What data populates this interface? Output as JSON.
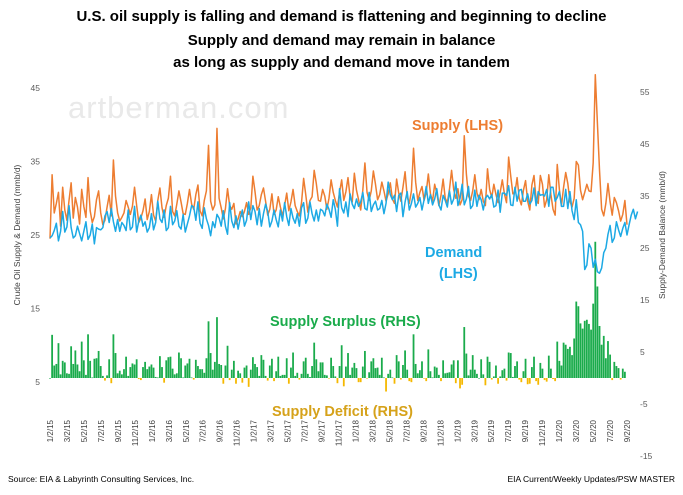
{
  "chart_data": {
    "type": "line",
    "title": [
      "U.S. oil supply is falling and demand is flattening and beginning to decline",
      "Supply and demand may remain in balance",
      "as long as supply and demand move in tandem"
    ],
    "watermark": "artberman.com",
    "ylabel_left": "Crude  Oil Supply & Demand (mmb/d)",
    "ylabel_right": "Supply-Demand Balance (mmb/d)",
    "y_left": {
      "ticks": [
        "5",
        "15",
        "25",
        "35",
        "45"
      ],
      "ylim": [
        5,
        45
      ]
    },
    "y_right": {
      "ticks": [
        "-15",
        "-5",
        "5",
        "15",
        "25",
        "35",
        "45",
        "55"
      ],
      "ylim": [
        -15,
        55
      ]
    },
    "x_ticks": [
      "1/2/15",
      "3/2/15",
      "5/2/15",
      "7/2/15",
      "9/2/15",
      "11/2/15",
      "1/2/16",
      "3/2/16",
      "5/2/16",
      "7/2/16",
      "9/2/16",
      "11/2/16",
      "1/2/17",
      "3/2/17",
      "5/2/17",
      "7/2/17",
      "9/2/17",
      "11/2/17",
      "1/2/18",
      "3/2/18",
      "5/2/18",
      "7/2/18",
      "9/2/18",
      "11/2/18",
      "1/2/19",
      "3/2/19",
      "5/2/19",
      "7/2/19",
      "9/2/19",
      "11/2/19",
      "1/2/20",
      "3/2/20",
      "5/2/20",
      "7/2/20",
      "9/2/20"
    ],
    "annotations": [
      {
        "text": "Supply (LHS)",
        "color": "#ed7d31"
      },
      {
        "text": "Demand",
        "color": "#1ca9e4"
      },
      {
        "text": "(LHS)",
        "color": "#1ca9e4"
      },
      {
        "text": "Supply Surplus (RHS)",
        "color": "#1aab4b"
      },
      {
        "text": "Supply Deficit (RHS)",
        "color": "#d6a21a"
      }
    ],
    "colors": {
      "supply": "#ed7d31",
      "demand": "#1ca9e4",
      "surplus": "#1aab4b",
      "deficit": "#f5b800"
    },
    "series": [
      {
        "name": "Supply (LHS)",
        "axis": "left",
        "type": "line",
        "values": [
          24.5,
          33.2,
          28.0,
          29.3,
          30.8,
          26.2,
          31.5,
          28.4,
          27.0,
          29.7,
          32.1,
          27.3,
          30.1,
          28.8,
          26.5,
          31.2,
          28.9,
          27.4,
          32.8,
          28.3,
          26.7,
          27.5,
          29.8,
          31.0,
          28.0,
          26.4,
          27.0,
          28.8,
          30.4,
          27.6,
          35.2,
          30.3,
          28.0,
          26.9,
          27.4,
          28.0,
          29.7,
          28.8,
          27.8,
          28.9,
          31.5,
          29.0,
          26.7,
          27.3,
          28.3,
          29.9,
          27.1,
          28.2,
          30.5,
          27.7,
          26.9,
          29.7,
          31.4,
          28.7,
          27.4,
          29.0,
          30.0,
          33.0,
          28.2,
          27.6,
          29.2,
          31.0,
          29.5,
          27.9,
          27.8,
          29.3,
          31.2,
          29.2,
          28.5,
          30.5,
          31.8,
          28.3,
          27.6,
          29.7,
          31.0,
          37.2,
          29.6,
          28.4,
          29.1,
          39.5,
          30.0,
          28.7,
          27.2,
          28.6,
          31.3,
          29.0,
          28.5,
          29.3,
          26.5,
          27.2,
          28.2,
          27.5,
          28.2,
          29.4,
          27.8,
          28.7,
          33.0,
          30.9,
          28.4,
          29.0,
          30.5,
          31.4,
          29.6,
          27.7,
          28.5,
          30.6,
          27.8,
          28.4,
          30.2,
          28.8,
          27.6,
          29.0,
          30.7,
          28.3,
          29.5,
          31.2,
          29.0,
          28.2,
          27.6,
          29.4,
          32.7,
          30.5,
          28.1,
          29.7,
          30.2,
          33.8,
          32.0,
          29.7,
          29.6,
          31.2,
          30.3,
          28.5,
          30.0,
          32.5,
          30.8,
          29.7,
          28.8,
          30.8,
          32.5,
          29.7,
          30.9,
          32.8,
          30.1,
          29.5,
          33.4,
          31.1,
          29.8,
          28.4,
          31.1,
          34.8,
          30.8,
          29.7,
          31.0,
          33.7,
          31.9,
          29.8,
          30.5,
          32.2,
          31.0,
          29.6,
          30.6,
          32.1,
          29.9,
          29.3,
          32.6,
          30.7,
          29.6,
          31.5,
          33.6,
          30.2,
          29.3,
          31.0,
          36.8,
          32.2,
          29.7,
          30.8,
          31.6,
          29.7,
          30.8,
          33.3,
          30.6,
          29.6,
          31.9,
          30.7,
          29.0,
          30.4,
          32.6,
          30.0,
          29.4,
          31.2,
          33.8,
          31.2,
          30.0,
          31.3,
          29.1,
          29.8,
          38.5,
          33.3,
          30.3,
          29.7,
          31.0,
          33.2,
          30.7,
          29.8,
          31.2,
          29.6,
          29.0,
          34.0,
          31.2,
          30.1,
          31.9,
          30.5,
          29.4,
          30.8,
          32.5,
          30.6,
          29.4,
          35.6,
          33.0,
          30.6,
          30.8,
          32.8,
          30.0,
          29.1,
          31.1,
          32.4,
          29.6,
          28.4,
          31.8,
          33.1,
          29.8,
          29.3,
          33.1,
          31.9,
          28.8,
          29.8,
          33.2,
          30.5,
          28.5,
          27.7,
          34.6,
          31.2,
          29.0,
          31.5,
          33.5,
          32.0,
          29.6,
          28.8,
          30.0,
          35.0,
          34.5,
          31.1,
          29.8,
          30.8,
          31.9,
          31.0,
          30.9,
          34.8,
          46.8,
          40.2,
          33.8,
          28.5,
          27.6,
          29.3,
          32.0,
          29.5,
          27.7,
          30.1,
          29.4,
          28.3,
          26.9,
          27.8,
          29.7,
          26.4
        ]
      },
      {
        "name": "Demand (LHS)",
        "axis": "left",
        "type": "line",
        "values": [
          24.6,
          24.9,
          25.6,
          26.6,
          24.2,
          25.5,
          28.2,
          25.4,
          26.1,
          29.0,
          26.0,
          24.6,
          24.9,
          26.2,
          25.2,
          24.2,
          25.5,
          26.8,
          24.4,
          25.0,
          26.5,
          23.8,
          26.0,
          25.8,
          25.7,
          26.0,
          27.6,
          28.2,
          26.7,
          28.6,
          26.8,
          25.5,
          27.1,
          25.5,
          26.7,
          26.3,
          25.6,
          28.4,
          25.7,
          26.1,
          28.9,
          25.4,
          26.9,
          27.7,
          26.2,
          26.8,
          25.4,
          26.0,
          27.9,
          25.7,
          26.7,
          29.6,
          27.2,
          26.7,
          28.4,
          25.6,
          26.0,
          28.9,
          26.4,
          26.9,
          28.3,
          26.2,
          25.8,
          27.8,
          25.4,
          26.5,
          27.6,
          29.0,
          28.8,
          27.0,
          29.5,
          26.6,
          25.9,
          28.7,
          27.2,
          26.3,
          24.9,
          26.8,
          26.0,
          27.8,
          27.3,
          26.2,
          28.3,
          26.2,
          25.1,
          29.4,
          26.9,
          26.0,
          27.6,
          25.8,
          27.3,
          28.4,
          26.2,
          27.0,
          29.5,
          27.1,
          29.0,
          28.2,
          26.4,
          28.6,
          26.2,
          27.9,
          29.2,
          28.2,
          26.1,
          26.9,
          28.4,
          27.1,
          26.1,
          28.4,
          26.9,
          29.4,
          27.5,
          26.3,
          28.6,
          27.3,
          26.6,
          27.9,
          26.2,
          28.7,
          29.4,
          26.6,
          27.3,
          29.5,
          27.9,
          26.9,
          28.4,
          26.9,
          28.5,
          28.3,
          27.6,
          29.2,
          28.5,
          27.4,
          29.8,
          28.5,
          26.2,
          31.3,
          28.7,
          28.0,
          29.5,
          27.5,
          30.6,
          29.2,
          28.6,
          29.9,
          28.9,
          29.5,
          30.8,
          28.6,
          28.4,
          30.8,
          28.2,
          29.1,
          29.6,
          28.4,
          28.6,
          29.7,
          27.9,
          29.3,
          32.2,
          30.5,
          29.8,
          30.4,
          28.2,
          30.4,
          30.7,
          27.5,
          29.5,
          30.9,
          28.4,
          29.3,
          30.6,
          28.8,
          29.3,
          30.1,
          28.4,
          29.8,
          31.6,
          29.3,
          30.5,
          29.1,
          29.9,
          31.3,
          29.1,
          28.4,
          30.4,
          29.7,
          28.8,
          31.0,
          29.2,
          29.9,
          32.2,
          29.0,
          30.0,
          31.9,
          29.1,
          29.9,
          31.6,
          28.6,
          29.0,
          31.1,
          28.9,
          30.4,
          29.8,
          28.4,
          30.0,
          30.4,
          29.9,
          30.5,
          28.8,
          29.0,
          31.1,
          28.1,
          30.7,
          30.7,
          30.4,
          31.7,
          29.1,
          29.0,
          31.5,
          29.6,
          31.1,
          31.2,
          29.6,
          29.6,
          30.6,
          29.2,
          29.7,
          31.4,
          29.0,
          30.9,
          30.4,
          30.5,
          30.3,
          31.2,
          28.9,
          31.5,
          31.5,
          29.6,
          30.1,
          30.9,
          28.9,
          28.9,
          31.2,
          28.6,
          30.9,
          28.3,
          27.1,
          29.8,
          26.7,
          26.4,
          25.5,
          20.3,
          20.9,
          23.8,
          23.2,
          20.6,
          21.7,
          20.0,
          19.8,
          20.5,
          22.6,
          23.2,
          25.1,
          26.3,
          24.0,
          24.6,
          26.8,
          25.7,
          24.8,
          25.9,
          26.7,
          25.0,
          26.4,
          27.7,
          28.5,
          27.2,
          28.2
        ]
      },
      {
        "name": "Supply-Demand Balance (RHS)",
        "axis": "right",
        "type": "bar",
        "values": [
          -0.0,
          8.3,
          2.4,
          2.7,
          6.7,
          0.7,
          3.3,
          3.0,
          0.9,
          0.8,
          6.1,
          2.7,
          5.3,
          2.6,
          1.3,
          7.0,
          3.4,
          0.6,
          8.4,
          3.3,
          0.1,
          3.7,
          3.8,
          5.2,
          2.3,
          0.4,
          -0.5,
          0.5,
          3.6,
          -1.0,
          8.4,
          4.8,
          0.9,
          1.4,
          0.7,
          1.7,
          4.1,
          0.4,
          2.1,
          2.8,
          2.6,
          3.6,
          -0.2,
          -0.4,
          2.1,
          3.1,
          1.7,
          2.2,
          2.6,
          2.0,
          0.2,
          0.1,
          4.2,
          2.1,
          -0.9,
          3.4,
          4.0,
          4.1,
          1.8,
          0.7,
          0.9,
          4.9,
          3.8,
          0.1,
          2.4,
          2.8,
          3.7,
          0.1,
          -0.3,
          3.5,
          2.3,
          1.7,
          1.7,
          1.0,
          3.8,
          10.9,
          4.8,
          1.6,
          3.1,
          11.7,
          2.7,
          2.5,
          -1.1,
          2.4,
          6.2,
          -0.4,
          1.6,
          3.3,
          -1.1,
          1.4,
          0.9,
          -0.9,
          2.0,
          2.4,
          -1.7,
          1.6,
          4.0,
          2.7,
          2.1,
          0.4,
          4.4,
          3.5,
          0.4,
          -0.5,
          2.4,
          3.7,
          -0.6,
          1.3,
          4.1,
          0.4,
          0.6,
          0.6,
          3.8,
          -1.1,
          2.0,
          4.9,
          0.4,
          1.0,
          -0.3,
          0.8,
          3.2,
          3.9,
          0.8,
          0.2,
          2.3,
          6.8,
          3.6,
          1.3,
          3.0,
          3.0,
          0.6,
          0.5,
          -0.1,
          3.9,
          2.3,
          0.3,
          -1.0,
          2.3,
          6.3,
          -1.6,
          2.2,
          4.8,
          0.6,
          2.0,
          2.9,
          1.9,
          -0.8,
          -0.8,
          2.2,
          5.2,
          -0.1,
          1.1,
          3.2,
          3.8,
          1.9,
          2.0,
          0.6,
          3.9,
          0.1,
          -2.6,
          0.8,
          1.6,
          0.1,
          -1.1,
          4.4,
          3.2,
          -0.3,
          2.5,
          5.3,
          1.6,
          -0.6,
          -0.8,
          8.4,
          2.7,
          0.9,
          1.5,
          3.2,
          -0.1,
          -0.6,
          5.5,
          1.3,
          0.1,
          2.2,
          2.0,
          0.6,
          -0.6,
          3.4,
          0.9,
          1.0,
          1.1,
          2.6,
          3.4,
          -1.0,
          3.4,
          -2.0,
          -1.3,
          9.8,
          4.7,
          0.5,
          1.6,
          4.4,
          1.6,
          0.8,
          0.0,
          3.6,
          0.7,
          -1.4,
          4.1,
          3.1,
          -0.3,
          0.3,
          2.4,
          -1.1,
          0.3,
          1.5,
          1.8,
          -0.5,
          4.9,
          4.8,
          0.2,
          2.3,
          3.2,
          -0.3,
          -0.8,
          1.3,
          3.7,
          -1.2,
          -1.1,
          2.1,
          4.1,
          -0.6,
          -1.3,
          2.9,
          1.8,
          -0.4,
          -0.7,
          4.3,
          1.8,
          -0.2,
          -0.6,
          7.0,
          3.3,
          2.4,
          6.8,
          6.4,
          5.6,
          6.0,
          4.4,
          7.6,
          14.7,
          13.8,
          10.5,
          9.5,
          11.0,
          11.2,
          10.4,
          9.3,
          14.3,
          26.2,
          17.6,
          10.0,
          6.4,
          8.1,
          3.8,
          7.1,
          4.5,
          -0.4,
          3.1,
          2.3,
          1.9,
          -0.3,
          1.8,
          1.2
        ]
      }
    ]
  },
  "footer": {
    "source": "Source:  EIA & Labyrinth Consulting Services, Inc.",
    "credit": "EIA Current/Weekly Updates/PSW MASTER"
  }
}
